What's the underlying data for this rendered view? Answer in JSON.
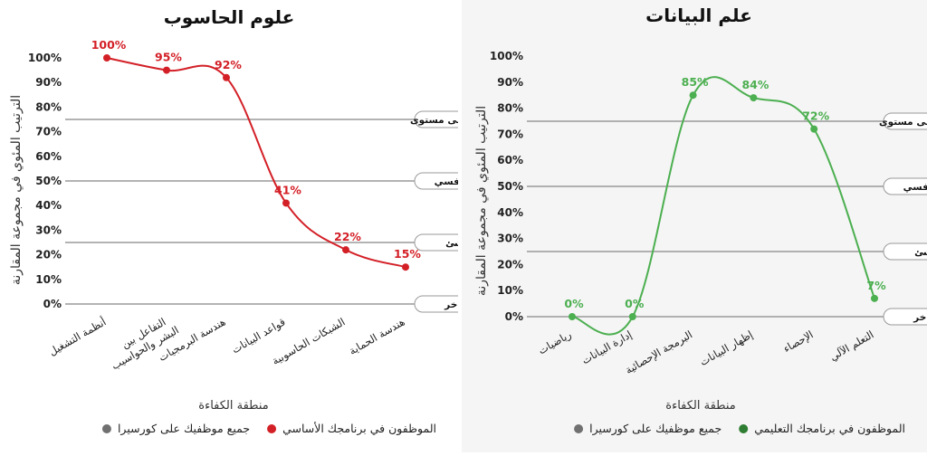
{
  "chart_data": [
    {
      "type": "line",
      "title": "علوم الحاسوب",
      "ylabel": "الترتيب المئوي في مجموعة المقارنة",
      "xlabel": "منطقة الكفاءة",
      "ylim": [
        0,
        100
      ],
      "yticks": [
        "0%",
        "10%",
        "20%",
        "30%",
        "40%",
        "50%",
        "60%",
        "70%",
        "80%",
        "90%",
        "100%"
      ],
      "categories": [
        "أنظمة التشغيل",
        "التفاعل بين البشر والحواسيب",
        "هندسة البرمجيات",
        "قواعد البيانات",
        "الشبكات الحاسوبية",
        "هندسة الحماية"
      ],
      "series": [
        {
          "name": "الموظفون في برنامجك الأساسي",
          "values": [
            100,
            95,
            92,
            41,
            22,
            15
          ],
          "labels": [
            "100%",
            "95%",
            "92%",
            "41%",
            "22%",
            "15%"
          ],
          "color": "#d32027"
        }
      ],
      "reference_lines": [
        {
          "label": "أعلى مستوى",
          "value": 75
        },
        {
          "label": "تنافسي",
          "value": 50
        },
        {
          "label": "ناشئ",
          "value": 25
        },
        {
          "label": "متأخر",
          "value": 0
        }
      ],
      "legend": [
        {
          "label": "الموظفون في برنامجك الأساسي",
          "color": "#d32027"
        },
        {
          "label": "جميع موظفيك على كورسيرا",
          "color": "#707070"
        }
      ]
    },
    {
      "type": "line",
      "title": "علم البيانات",
      "ylabel": "الترتيب المئوي في مجموعة المقارنة",
      "xlabel": "منطقة الكفاءة",
      "ylim": [
        0,
        100
      ],
      "yticks": [
        "0%",
        "10%",
        "20%",
        "30%",
        "40%",
        "50%",
        "60%",
        "70%",
        "80%",
        "90%",
        "100%"
      ],
      "categories": [
        "رياضيات",
        "إدارة البيانات",
        "البرمجة الإحصائية",
        "إظهار البيانات",
        "الإحصاء",
        "التعلم الآلي"
      ],
      "series": [
        {
          "name": "الموظفون في برنامجك التعليمي",
          "values": [
            0,
            0,
            85,
            84,
            72,
            7
          ],
          "labels": [
            "0%",
            "0%",
            "85%",
            "84%",
            "72%",
            "7%"
          ],
          "color": "#4caf50"
        }
      ],
      "reference_lines": [
        {
          "label": "أعلى مستوى",
          "value": 75
        },
        {
          "label": "تنافسي",
          "value": 50
        },
        {
          "label": "ناشئ",
          "value": 25
        },
        {
          "label": "متأخر",
          "value": 0
        }
      ],
      "legend": [
        {
          "label": "الموظفون في برنامجك التعليمي",
          "color": "#2e7d32"
        },
        {
          "label": "جميع موظفيك على كورسيرا",
          "color": "#707070"
        }
      ]
    }
  ]
}
